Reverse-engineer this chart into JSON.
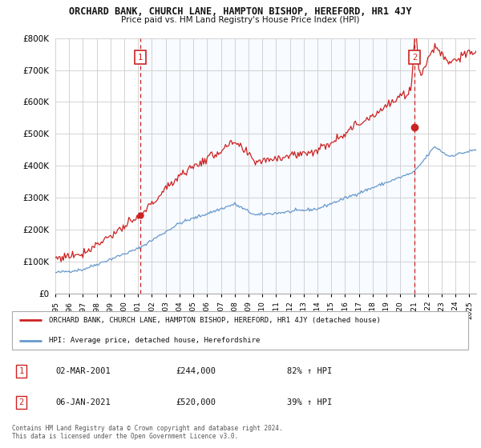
{
  "title": "ORCHARD BANK, CHURCH LANE, HAMPTON BISHOP, HEREFORD, HR1 4JY",
  "subtitle": "Price paid vs. HM Land Registry's House Price Index (HPI)",
  "legend_line1": "ORCHARD BANK, CHURCH LANE, HAMPTON BISHOP, HEREFORD, HR1 4JY (detached house)",
  "legend_line2": "HPI: Average price, detached house, Herefordshire",
  "annotation1_date": "02-MAR-2001",
  "annotation1_price": "£244,000",
  "annotation1_hpi": "82% ↑ HPI",
  "annotation2_date": "06-JAN-2021",
  "annotation2_price": "£520,000",
  "annotation2_hpi": "39% ↑ HPI",
  "sale1_year": 2001.17,
  "sale1_price": 244000,
  "sale2_year": 2021.02,
  "sale2_price": 520000,
  "red_color": "#cc2222",
  "blue_color": "#6699cc",
  "shade_color": "#ddeeff",
  "background_color": "#ffffff",
  "grid_color": "#cccccc",
  "footer": "Contains HM Land Registry data © Crown copyright and database right 2024.\nThis data is licensed under the Open Government Licence v3.0.",
  "ylim": [
    0,
    800000
  ],
  "xmin": 1995,
  "xmax": 2025.5
}
